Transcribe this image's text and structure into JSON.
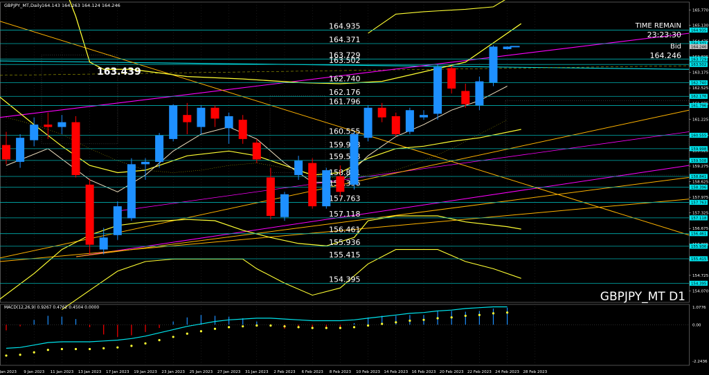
{
  "header": {
    "symbol_text": "GBPJPY_MT,Daily",
    "ohlc_text": "164.143 164.263 164.124 164.246"
  },
  "watermark": "GBPJPY_MT D1",
  "price_label_left": "163.439",
  "time_remain": {
    "label": "TIME REMAIN",
    "value": "23:23:30"
  },
  "bid": {
    "label": "Bid",
    "value": "164.246"
  },
  "macd_label": "MACD(12,26,9) 0.9267 0.4762 0.4504 0.0000",
  "colors": {
    "bull": "#1e90ff",
    "bear": "#ff0000",
    "cyan": "#00e5ee",
    "yellow": "#ffff33",
    "magenta": "#ff00ff",
    "orange": "#ffb300",
    "grid": "#4d4d4d"
  },
  "chart_data": {
    "type": "candlestick",
    "main": {
      "ylim": [
        153.6,
        166.1
      ],
      "y_ticks": [
        "165.770",
        "165.130",
        "164.475",
        "163.825",
        "163.175",
        "162.525",
        "161.875",
        "161.225",
        "160.575",
        "159.925",
        "159.275",
        "158.625",
        "157.975",
        "157.325",
        "156.675",
        "156.025",
        "155.375",
        "154.725",
        "154.070"
      ],
      "levels": [
        164.935,
        164.371,
        163.729,
        163.502,
        162.74,
        162.176,
        161.796,
        160.555,
        159.998,
        159.508,
        158.841,
        158.396,
        157.763,
        157.118,
        156.461,
        155.936,
        155.415,
        154.395
      ],
      "level_labels": [
        "164.935",
        "164.371",
        "163.729",
        "163.502",
        "162.740",
        "162.176",
        "161.796",
        "160.555",
        "159.998",
        "159.508",
        "158.841",
        "158.396",
        "157.763",
        "157.118",
        "156.461",
        "155.936",
        "155.415",
        "154.395"
      ],
      "axis_highlights": [
        "164.935",
        "164.371",
        "163.729",
        "163.502",
        "162.740",
        "162.176",
        "161.796",
        "160.555",
        "159.998",
        "159.508",
        "158.841",
        "158.396",
        "157.763",
        "157.118",
        "156.461",
        "155.936",
        "155.415",
        "154.395",
        "164.246"
      ],
      "candles": [
        {
          "o": 160.15,
          "h": 160.7,
          "c": 159.55,
          "l": 159.35
        },
        {
          "o": 159.45,
          "h": 160.6,
          "c": 160.45,
          "l": 159.2
        },
        {
          "o": 160.35,
          "h": 161.3,
          "c": 161.0,
          "l": 160.1
        },
        {
          "o": 161.0,
          "h": 161.5,
          "c": 160.9,
          "l": 160.4
        },
        {
          "o": 160.9,
          "h": 161.4,
          "c": 161.1,
          "l": 160.6
        },
        {
          "o": 161.1,
          "h": 161.35,
          "c": 158.9,
          "l": 158.8
        },
        {
          "o": 158.5,
          "h": 158.75,
          "c": 156.0,
          "l": 155.6
        },
        {
          "o": 155.8,
          "h": 156.7,
          "c": 156.3,
          "l": 155.6
        },
        {
          "o": 156.4,
          "h": 157.8,
          "c": 157.6,
          "l": 156.2
        },
        {
          "o": 157.1,
          "h": 159.6,
          "c": 159.35,
          "l": 157.0
        },
        {
          "o": 159.35,
          "h": 159.6,
          "c": 159.45,
          "l": 158.7
        },
        {
          "o": 159.45,
          "h": 160.65,
          "c": 160.55,
          "l": 159.2
        },
        {
          "o": 160.4,
          "h": 161.85,
          "c": 161.8,
          "l": 160.3
        },
        {
          "o": 161.4,
          "h": 161.9,
          "c": 161.1,
          "l": 160.6
        },
        {
          "o": 160.9,
          "h": 161.8,
          "c": 161.7,
          "l": 160.6
        },
        {
          "o": 161.7,
          "h": 161.8,
          "c": 161.25,
          "l": 160.9
        },
        {
          "o": 160.85,
          "h": 161.5,
          "c": 161.35,
          "l": 160.2
        },
        {
          "o": 161.2,
          "h": 161.4,
          "c": 160.4,
          "l": 160.2
        },
        {
          "o": 160.25,
          "h": 160.4,
          "c": 159.55,
          "l": 159.4
        },
        {
          "o": 158.8,
          "h": 159.2,
          "c": 157.2,
          "l": 157.05
        },
        {
          "o": 157.15,
          "h": 158.2,
          "c": 158.1,
          "l": 157.0
        },
        {
          "o": 158.9,
          "h": 159.7,
          "c": 159.5,
          "l": 158.7
        },
        {
          "o": 159.4,
          "h": 159.6,
          "c": 157.6,
          "l": 157.5
        },
        {
          "o": 157.6,
          "h": 159.2,
          "c": 159.1,
          "l": 157.5
        },
        {
          "o": 158.85,
          "h": 159.3,
          "c": 158.2,
          "l": 158.0
        },
        {
          "o": 158.5,
          "h": 160.7,
          "c": 160.6,
          "l": 158.3
        },
        {
          "o": 160.45,
          "h": 161.8,
          "c": 161.7,
          "l": 160.3
        },
        {
          "o": 161.7,
          "h": 161.9,
          "c": 161.3,
          "l": 161.1
        },
        {
          "o": 161.35,
          "h": 161.5,
          "c": 160.6,
          "l": 160.5
        },
        {
          "o": 160.7,
          "h": 161.7,
          "c": 161.6,
          "l": 160.6
        },
        {
          "o": 161.3,
          "h": 161.6,
          "c": 161.4,
          "l": 161.2
        },
        {
          "o": 161.45,
          "h": 163.5,
          "c": 163.4,
          "l": 161.2
        },
        {
          "o": 163.35,
          "h": 163.45,
          "c": 162.5,
          "l": 162.3
        },
        {
          "o": 162.4,
          "h": 162.7,
          "c": 161.85,
          "l": 161.7
        },
        {
          "o": 161.8,
          "h": 163.0,
          "c": 162.8,
          "l": 161.6
        },
        {
          "o": 162.75,
          "h": 164.3,
          "c": 164.246,
          "l": 162.6
        },
        {
          "o": 164.143,
          "h": 164.263,
          "c": 164.246,
          "l": 164.124
        }
      ]
    },
    "macd": {
      "ylim": [
        -2.5,
        1.25
      ],
      "y_ticks": [
        "1.0776",
        "0.00",
        "-2.2436"
      ],
      "hist": [
        -0.35,
        -0.1,
        0.3,
        0.55,
        0.5,
        0.35,
        -0.15,
        -0.6,
        -0.75,
        -0.65,
        -0.45,
        -0.2,
        0.2,
        0.45,
        0.6,
        0.55,
        0.5,
        0.4,
        0.2,
        -0.1,
        -0.25,
        -0.1,
        -0.2,
        -0.15,
        -0.2,
        0.1,
        0.45,
        0.55,
        0.55,
        0.6,
        0.6,
        0.85,
        0.85,
        0.8,
        0.85,
        1.0,
        1.05
      ],
      "signal": [
        -1.9,
        -1.85,
        -1.7,
        -1.55,
        -1.5,
        -1.5,
        -1.5,
        -1.45,
        -1.4,
        -1.3,
        -1.15,
        -0.95,
        -0.75,
        -0.55,
        -0.4,
        -0.25,
        -0.15,
        -0.1,
        -0.05,
        -0.05,
        -0.1,
        -0.15,
        -0.2,
        -0.2,
        -0.2,
        -0.15,
        -0.05,
        0.05,
        0.15,
        0.25,
        0.3,
        0.4,
        0.45,
        0.55,
        0.6,
        0.7,
        0.75
      ]
    },
    "x_labels": [
      "5 Jan 2023",
      "9 Jan 2023",
      "11 Jan 2023",
      "13 Jan 2023",
      "17 Jan 2023",
      "19 Jan 2023",
      "23 Jan 2023",
      "25 Jan 2023",
      "27 Jan 2023",
      "31 Jan 2023",
      "2 Feb 2023",
      "6 Feb 2023",
      "8 Feb 2023",
      "10 Feb 2023",
      "14 Feb 2023",
      "16 Feb 2023",
      "20 Feb 2023",
      "22 Feb 2023",
      "24 Feb 2023",
      "28 Feb 2023"
    ]
  }
}
